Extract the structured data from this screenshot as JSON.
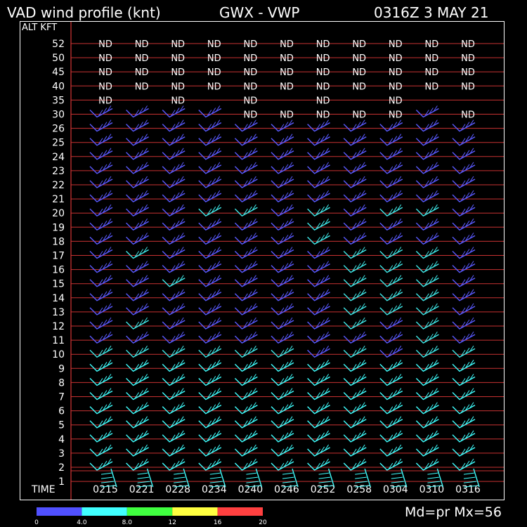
{
  "header": {
    "title": "VAD wind profile (knt)",
    "station": "GWX - VWP",
    "datetime": "0316Z  3 MAY 21"
  },
  "axis": {
    "y_title": "ALT KFT",
    "x_title": "TIME"
  },
  "colorbar": {
    "labels": [
      "0",
      "4.0",
      "8.0",
      "12",
      "16",
      "20"
    ],
    "colors": [
      "#5050ff",
      "#40ffff",
      "#40ff40",
      "#ffff40",
      "#ff4040"
    ]
  },
  "footer": {
    "text": "Md=pr Mx=56"
  },
  "chart_data": {
    "type": "wind_barb_profile",
    "altitudes_kft": [
      "52",
      "50",
      "45",
      "40",
      "35",
      "30",
      "26",
      "25",
      "24",
      "23",
      "22",
      "21",
      "20",
      "19",
      "18",
      "17",
      "16",
      "15",
      "14",
      "13",
      "12",
      "11",
      "10",
      "9",
      "8",
      "7",
      "6",
      "5",
      "4",
      "3",
      "2",
      "1"
    ],
    "times": [
      "0215",
      "0221",
      "0228",
      "0234",
      "0240",
      "0246",
      "0252",
      "0258",
      "0304",
      "0310",
      "0316"
    ],
    "nd_cells": {
      "52": [
        0,
        1,
        2,
        3,
        4,
        5,
        6,
        7,
        8,
        9,
        10
      ],
      "50": [
        0,
        1,
        2,
        3,
        4,
        5,
        6,
        7,
        8,
        9,
        10
      ],
      "45": [
        0,
        1,
        2,
        3,
        4,
        5,
        6,
        7,
        8,
        9,
        10
      ],
      "40": [
        0,
        1,
        2,
        3,
        4,
        5,
        6,
        7,
        8,
        9,
        10
      ],
      "35": [
        0,
        2,
        4,
        6,
        8
      ],
      "30": [
        4,
        5,
        6,
        7,
        8,
        10
      ]
    },
    "blue_cells": {
      "26": [
        0,
        1,
        2,
        3,
        4,
        5,
        6,
        7,
        8,
        9,
        10
      ],
      "25": [
        0,
        1,
        2,
        3,
        4,
        5,
        6,
        7,
        8,
        9,
        10
      ],
      "24": [
        0,
        1,
        2,
        3,
        4,
        5,
        6,
        7,
        8,
        9,
        10
      ],
      "23": [
        0,
        1,
        2,
        3,
        4,
        5,
        6,
        7,
        8,
        9,
        10
      ],
      "22": [
        0,
        1,
        2,
        3,
        4,
        5,
        6,
        7,
        8,
        9,
        10
      ],
      "21": [
        0,
        1,
        2,
        3,
        4,
        5,
        6,
        7,
        8,
        9,
        10
      ],
      "20": [
        0,
        1,
        2,
        5,
        7,
        10
      ],
      "19": [
        0,
        1,
        2,
        3,
        4,
        5,
        7,
        8,
        9,
        10
      ],
      "18": [
        0,
        1,
        2,
        3,
        4,
        5,
        7,
        8,
        9,
        10
      ],
      "17": [
        0,
        2,
        3,
        4,
        5,
        6,
        10
      ],
      "16": [
        0,
        1,
        2,
        3,
        4,
        5,
        6,
        10
      ],
      "15": [
        0,
        1,
        3,
        4,
        5,
        6,
        10
      ],
      "14": [
        0,
        1,
        2,
        3,
        4,
        5,
        6,
        10
      ],
      "13": [
        0,
        1,
        2,
        3,
        4,
        5,
        6,
        10
      ],
      "12": [
        0,
        2,
        3,
        4,
        5,
        6,
        8,
        10
      ],
      "11": [
        0,
        1,
        2,
        3,
        4,
        5,
        6,
        7,
        8,
        10
      ],
      "10": [
        6,
        8
      ]
    }
  }
}
